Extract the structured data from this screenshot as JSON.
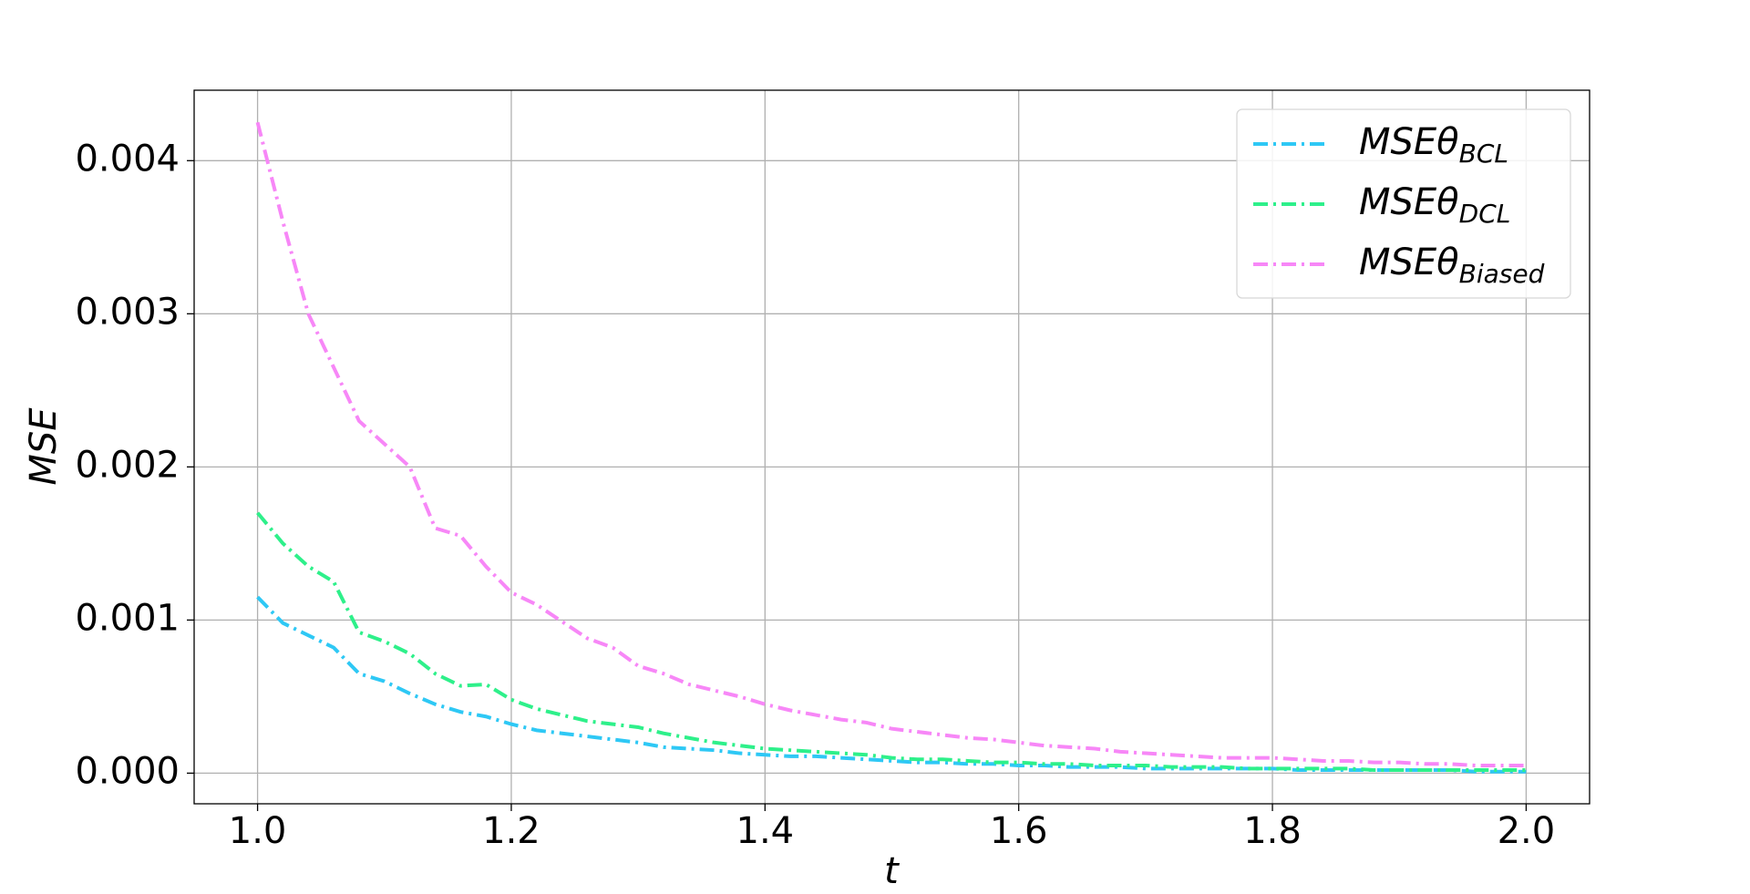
{
  "chart_data": {
    "type": "line",
    "x_label": "t",
    "y_label": "MSE",
    "x": [
      1.0,
      1.02,
      1.04,
      1.06,
      1.08,
      1.1,
      1.12,
      1.14,
      1.16,
      1.18,
      1.2,
      1.22,
      1.24,
      1.26,
      1.28,
      1.3,
      1.32,
      1.34,
      1.36,
      1.38,
      1.4,
      1.42,
      1.44,
      1.46,
      1.48,
      1.5,
      1.52,
      1.54,
      1.56,
      1.58,
      1.6,
      1.62,
      1.64,
      1.66,
      1.68,
      1.7,
      1.72,
      1.74,
      1.76,
      1.78,
      1.8,
      1.82,
      1.84,
      1.86,
      1.88,
      1.9,
      1.92,
      1.94,
      1.96,
      1.98,
      2.0
    ],
    "series": [
      {
        "name": "MSEθ",
        "subscript": "BCL",
        "color": "#2ec8f5",
        "values": [
          0.00115,
          0.00098,
          0.0009,
          0.00082,
          0.00065,
          0.0006,
          0.00052,
          0.00045,
          0.0004,
          0.00037,
          0.00032,
          0.00028,
          0.00026,
          0.00024,
          0.00022,
          0.0002,
          0.00017,
          0.00016,
          0.00015,
          0.00013,
          0.00012,
          0.00011,
          0.00011,
          0.0001,
          9e-05,
          8e-05,
          7e-05,
          7e-05,
          6e-05,
          6e-05,
          5e-05,
          5e-05,
          4e-05,
          4e-05,
          4e-05,
          3e-05,
          3e-05,
          3e-05,
          3e-05,
          3e-05,
          3e-05,
          2e-05,
          2e-05,
          2e-05,
          2e-05,
          2e-05,
          2e-05,
          2e-05,
          1e-05,
          1e-05,
          1e-05
        ]
      },
      {
        "name": "MSEθ",
        "subscript": "DCL",
        "color": "#2ef08a",
        "values": [
          0.0017,
          0.0015,
          0.00135,
          0.00125,
          0.00092,
          0.00086,
          0.00078,
          0.00065,
          0.00057,
          0.00058,
          0.00048,
          0.00042,
          0.00038,
          0.00034,
          0.00032,
          0.0003,
          0.00026,
          0.00023,
          0.0002,
          0.00018,
          0.00016,
          0.00015,
          0.00014,
          0.00013,
          0.00012,
          0.0001,
          9e-05,
          9e-05,
          8e-05,
          7e-05,
          7e-05,
          6e-05,
          6e-05,
          5e-05,
          5e-05,
          5e-05,
          4e-05,
          4e-05,
          4e-05,
          3e-05,
          3e-05,
          3e-05,
          3e-05,
          3e-05,
          2e-05,
          2e-05,
          2e-05,
          2e-05,
          2e-05,
          2e-05,
          2e-05
        ]
      },
      {
        "name": "MSEθ",
        "subscript": "Biased",
        "color": "#f787f7",
        "values": [
          0.00425,
          0.0036,
          0.003,
          0.00265,
          0.0023,
          0.00215,
          0.002,
          0.0016,
          0.00155,
          0.00135,
          0.00118,
          0.0011,
          0.00099,
          0.00088,
          0.00082,
          0.0007,
          0.00065,
          0.00058,
          0.00054,
          0.0005,
          0.00045,
          0.00041,
          0.00038,
          0.00035,
          0.00033,
          0.00029,
          0.00027,
          0.00025,
          0.00023,
          0.00022,
          0.0002,
          0.00018,
          0.00017,
          0.00016,
          0.00014,
          0.00013,
          0.00012,
          0.00011,
          0.0001,
          0.0001,
          0.0001,
          9e-05,
          8e-05,
          8e-05,
          7e-05,
          7e-05,
          6e-05,
          6e-05,
          5e-05,
          5e-05,
          5e-05
        ]
      }
    ],
    "xlim": [
      0.95,
      2.05
    ],
    "xticks": [
      {
        "value": 1,
        "label": "1.0"
      },
      1.2,
      1.4,
      1.6,
      1.8,
      {
        "value": 2,
        "label": "2.0"
      }
    ],
    "ylim": [
      -0.0002,
      0.00446
    ],
    "yticks": [
      {
        "value": 0,
        "label": "0.000"
      },
      0.001,
      0.002,
      0.003,
      0.004
    ],
    "grid": true,
    "legend": "upper right"
  }
}
